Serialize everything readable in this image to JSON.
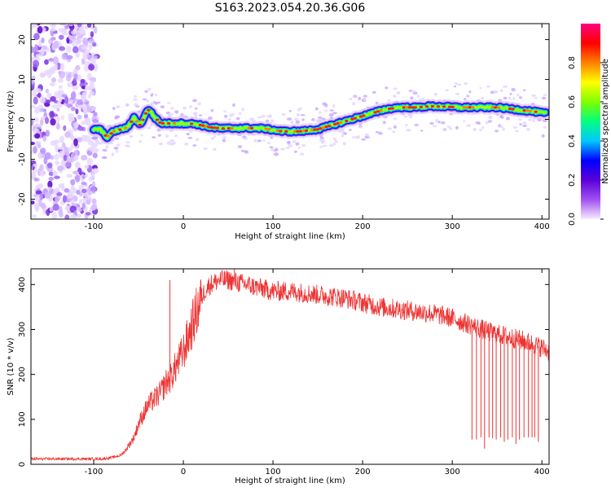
{
  "figure": {
    "title": "S163.2023.054.20.36.G06"
  },
  "chart_data": [
    {
      "type": "heatmap",
      "xlabel": "Height of straight line (km)",
      "ylabel": "Frequency (Hz)",
      "xlim": [
        -170,
        408
      ],
      "ylim": [
        -25,
        24
      ],
      "xticks": [
        -100,
        0,
        100,
        200,
        300,
        400
      ],
      "yticks": [
        -20,
        -10,
        0,
        10,
        20
      ],
      "noise_region_x": [
        -170,
        -100
      ],
      "trace": {
        "x": [
          -100,
          -93,
          -85,
          -78,
          -70,
          -62,
          -55,
          -48,
          -42,
          -38,
          -32,
          -25,
          -15,
          0,
          15,
          30,
          45,
          60,
          75,
          90,
          110,
          130,
          150,
          165,
          180,
          195,
          210,
          225,
          240,
          260,
          275,
          290,
          310,
          330,
          350,
          370,
          390,
          405
        ],
        "y": [
          -2.5,
          -2.5,
          -4.5,
          -3.0,
          -2.5,
          -2.0,
          0.5,
          -1.5,
          1.5,
          2.5,
          0.5,
          -1.0,
          -1.0,
          -1.0,
          -1.2,
          -2.0,
          -2.3,
          -2.2,
          -2.2,
          -2.3,
          -3.0,
          -3.0,
          -2.5,
          -1.5,
          -0.5,
          0.5,
          1.5,
          2.5,
          3.0,
          3.0,
          3.3,
          3.2,
          3.0,
          3.0,
          3.0,
          2.5,
          2.0,
          1.5
        ]
      },
      "colorbar": {
        "label": "Normalized spectral amplitude",
        "ticks": [
          0.0,
          0.2,
          0.4,
          0.6,
          0.8
        ],
        "range": [
          0,
          1
        ],
        "colors": [
          "#f7ecff",
          "#a050f0",
          "#5a00d8",
          "#0000ff",
          "#00c8ff",
          "#00ff80",
          "#80ff00",
          "#ffff00",
          "#ff8000",
          "#ff0000",
          "#ff0080"
        ]
      }
    },
    {
      "type": "line",
      "xlabel": "Height of straight line (km)",
      "ylabel": "SNR (10 * v/v)",
      "xlim": [
        -170,
        408
      ],
      "ylim": [
        0,
        435
      ],
      "xticks": [
        -100,
        0,
        100,
        200,
        300,
        400
      ],
      "yticks": [
        0,
        100,
        200,
        300,
        400
      ],
      "color": "#ee3333",
      "series": [
        {
          "x": [
            -170,
            -150,
            -130,
            -110,
            -90,
            -80,
            -70,
            -65,
            -60,
            -55,
            -50,
            -45,
            -40,
            -35,
            -30,
            -25,
            -20,
            -15,
            -10,
            -5,
            0,
            5,
            10,
            15,
            20,
            25,
            30,
            35,
            40,
            50,
            60,
            70,
            80,
            90,
            100,
            120,
            140,
            160,
            180,
            200,
            220,
            240,
            260,
            280,
            300,
            320,
            340,
            360,
            380,
            400,
            408
          ],
          "values": [
            12,
            12,
            12,
            12,
            12,
            15,
            20,
            30,
            45,
            60,
            90,
            110,
            130,
            140,
            150,
            160,
            180,
            190,
            210,
            230,
            250,
            280,
            310,
            340,
            370,
            390,
            400,
            405,
            410,
            410,
            405,
            400,
            395,
            390,
            385,
            385,
            380,
            375,
            370,
            360,
            350,
            345,
            340,
            335,
            325,
            310,
            295,
            285,
            275,
            260,
            250
          ]
        }
      ],
      "dropouts": {
        "x": [
          322,
          327,
          332,
          336,
          341,
          345,
          349,
          354,
          358,
          362,
          367,
          371,
          375,
          380,
          385,
          389,
          392,
          396
        ],
        "values": [
          55,
          55,
          60,
          35,
          60,
          58,
          55,
          60,
          50,
          55,
          60,
          45,
          55,
          60,
          60,
          60,
          60,
          50
        ]
      },
      "spikes": {
        "x": [
          -15,
          57
        ],
        "values": [
          410,
          440
        ]
      }
    }
  ]
}
